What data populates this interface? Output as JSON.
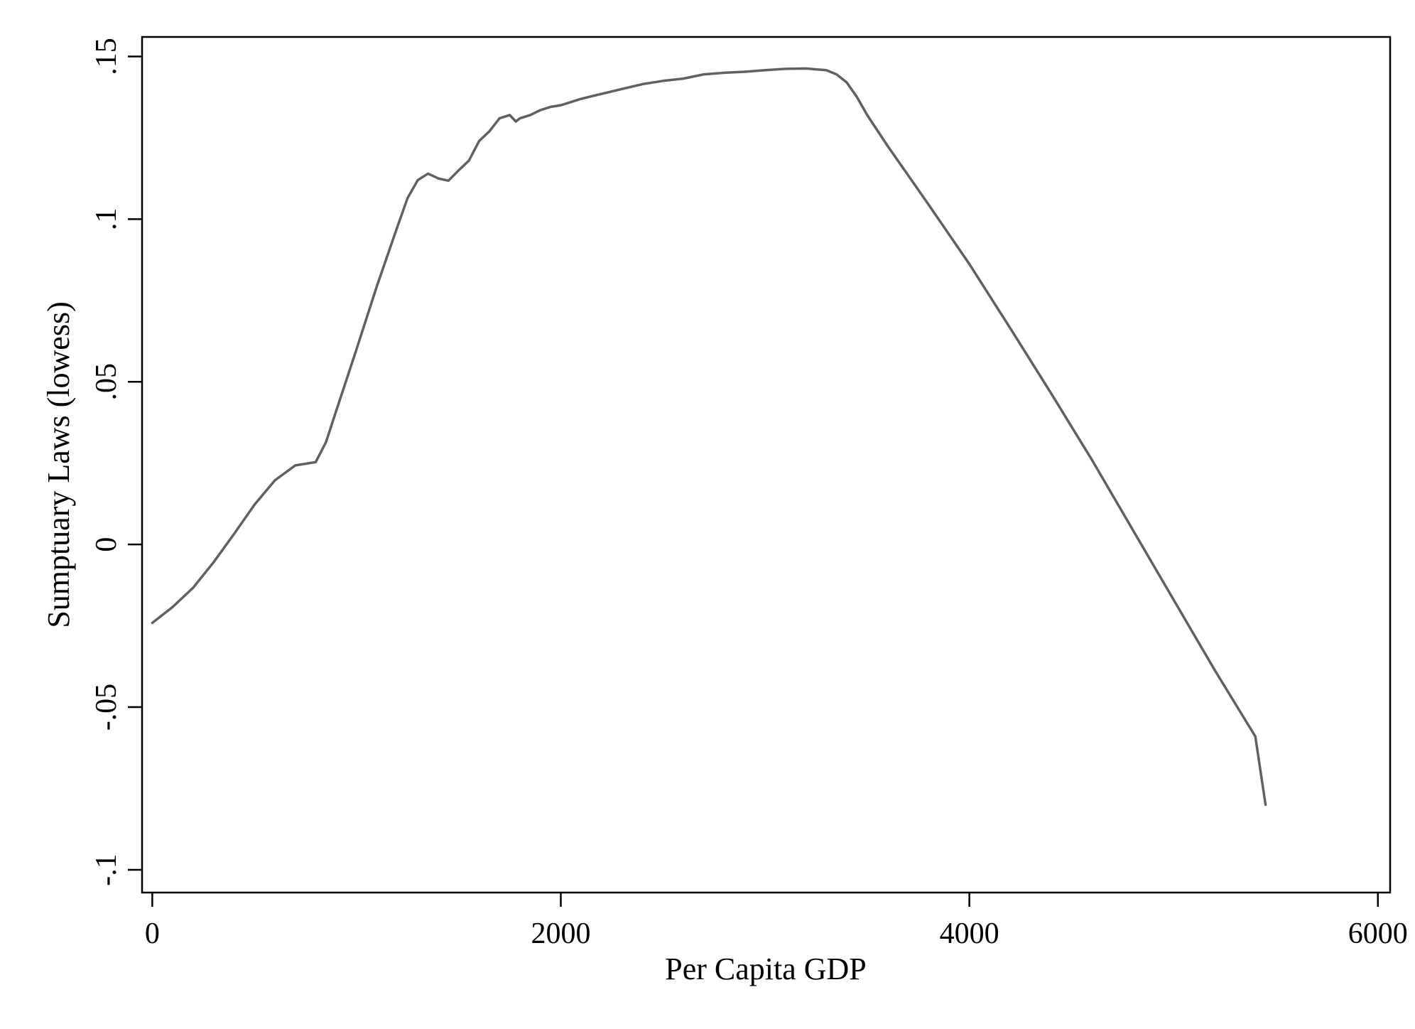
{
  "chart_data": {
    "type": "line",
    "title": "",
    "xlabel": "Per Capita GDP",
    "ylabel": "Sumptuary Laws (lowess)",
    "xlim": [
      -50,
      6060
    ],
    "ylim": [
      -0.107,
      0.156
    ],
    "xticks": [
      0,
      2000,
      4000,
      6000
    ],
    "xtick_labels": [
      "0",
      "2000",
      "4000",
      "6000"
    ],
    "yticks": [
      -0.1,
      -0.05,
      0,
      0.05,
      0.1,
      0.15
    ],
    "ytick_labels": [
      "-.1",
      "-.05",
      "0",
      ".05",
      ".1",
      ".15"
    ],
    "grid": false,
    "legend": "none",
    "colors": {
      "line": "#606060",
      "axis": "#000000",
      "background": "#ffffff"
    },
    "series": [
      {
        "x": [
          0,
          100,
          200,
          300,
          400,
          500,
          600,
          700,
          800,
          850,
          900,
          1000,
          1100,
          1200,
          1250,
          1300,
          1350,
          1400,
          1450,
          1500,
          1550,
          1600,
          1650,
          1700,
          1750,
          1780,
          1800,
          1850,
          1900,
          1950,
          2000,
          2100,
          2200,
          2300,
          2400,
          2500,
          2600,
          2700,
          2800,
          2900,
          3000,
          3100,
          3200,
          3300,
          3350,
          3400,
          3450,
          3500,
          3600,
          3700,
          3800,
          4000,
          4200,
          4400,
          4600,
          4800,
          5000,
          5200,
          5400,
          5450
        ],
        "y": [
          -0.0241,
          -0.0192,
          -0.0133,
          -0.0055,
          0.0032,
          0.0122,
          0.0197,
          0.0243,
          0.0253,
          0.0314,
          0.041,
          0.06,
          0.0795,
          0.0977,
          0.1065,
          0.112,
          0.114,
          0.1125,
          0.1118,
          0.115,
          0.118,
          0.124,
          0.127,
          0.131,
          0.132,
          0.13,
          0.131,
          0.132,
          0.1335,
          0.1345,
          0.135,
          0.137,
          0.1385,
          0.14,
          0.1415,
          0.1425,
          0.1432,
          0.1445,
          0.145,
          0.1453,
          0.1458,
          0.1462,
          0.1463,
          0.1458,
          0.1445,
          0.142,
          0.1375,
          0.132,
          0.1225,
          0.1135,
          0.1045,
          0.0862,
          0.0665,
          0.0465,
          0.026,
          0.0045,
          -0.017,
          -0.0385,
          -0.059,
          -0.08
        ]
      }
    ]
  }
}
